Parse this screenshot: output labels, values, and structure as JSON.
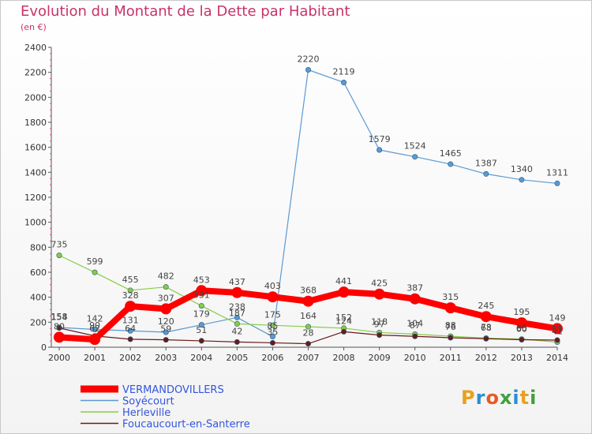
{
  "title": "Evolution du Montant de la Dette par Habitant",
  "unit_label": "(en €)",
  "logo": {
    "text": "Proxiti",
    "letters": [
      "P",
      "r",
      "o",
      "x",
      "i",
      "t",
      "i"
    ],
    "colors": [
      "#e8a020",
      "#2a8fd0",
      "#e85a20",
      "#40a040",
      "#2a8fd0",
      "#e8a020",
      "#40a040"
    ]
  },
  "chart_data": {
    "type": "line",
    "title": "Evolution du Montant de la Dette par Habitant",
    "ylabel": "(en €)",
    "xlabel": "",
    "x": [
      "2000",
      "2001",
      "2002",
      "2003",
      "2004",
      "2005",
      "2006",
      "2007",
      "2008",
      "2009",
      "2010",
      "2011",
      "2012",
      "2013",
      "2014"
    ],
    "ylim": [
      0,
      2400
    ],
    "yticks": [
      "0",
      "200",
      "400",
      "600",
      "800",
      "1000",
      "1200",
      "1400",
      "1600",
      "1800",
      "2000",
      "2200",
      "2400"
    ],
    "grid": false,
    "legend_position": "bottom-left",
    "series": [
      {
        "name": "VERMANDOVILLERS",
        "color": "#ff0000",
        "emphasis": true,
        "values": [
          80,
          62,
          328,
          307,
          453,
          437,
          403,
          368,
          441,
          425,
          387,
          315,
          245,
          195,
          149
        ],
        "labels": [
          "80",
          "62",
          "328",
          "307",
          "453",
          "437",
          "403",
          "368",
          "441",
          "425",
          "387",
          "315",
          "245",
          "195",
          "149"
        ]
      },
      {
        "name": "Soyécourt",
        "color": "#5a9ad2",
        "emphasis": false,
        "values": [
          158,
          142,
          131,
          120,
          179,
          238,
          85,
          2220,
          2119,
          1579,
          1524,
          1465,
          1387,
          1340,
          1311
        ],
        "labels": [
          "158",
          "142",
          "131",
          "120",
          "179",
          "238",
          "85",
          "2220",
          "2119",
          "1579",
          "1524",
          "1465",
          "1387",
          "1340",
          "1311"
        ]
      },
      {
        "name": "Herleville",
        "color": "#88cc44",
        "emphasis": false,
        "values": [
          735,
          599,
          455,
          482,
          331,
          187,
          175,
          164,
          152,
          118,
          104,
          88,
          73,
          65,
          41
        ],
        "labels": [
          "735",
          "599",
          "455",
          "482",
          "331",
          "187",
          "175",
          "164",
          "152",
          "118",
          "104",
          "88",
          "73",
          "65",
          "41"
        ]
      },
      {
        "name": "Foucaucourt-en-Santerre",
        "color": "#6b1a1a",
        "emphasis": false,
        "values": [
          154,
          90,
          64,
          59,
          51,
          42,
          35,
          28,
          124,
          97,
          87,
          76,
          68,
          60,
          57
        ],
        "labels": [
          "154",
          "90",
          "64",
          "59",
          "51",
          "42",
          "35",
          "28",
          "124",
          "97",
          "87",
          "76",
          "68",
          "60",
          "57"
        ]
      }
    ]
  }
}
